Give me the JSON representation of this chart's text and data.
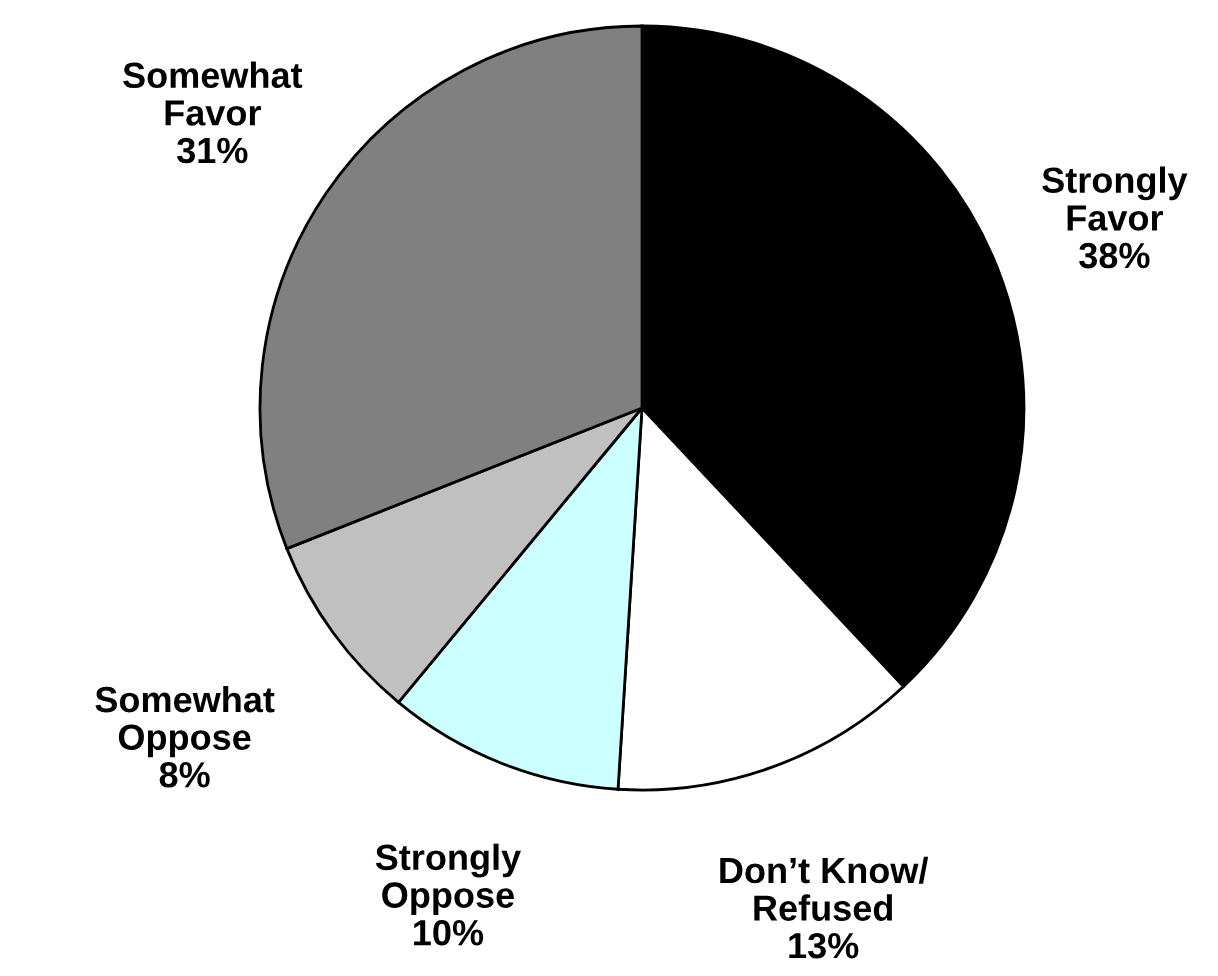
{
  "chart_data": {
    "type": "pie",
    "categories": [
      "Strongly\nFavor",
      "Don’t Know/\nRefused",
      "Strongly\nOppose",
      "Somewhat\nOppose",
      "Somewhat\nFavor"
    ],
    "values": [
      38,
      13,
      10,
      8,
      31
    ],
    "value_labels": [
      "38%",
      "13%",
      "10%",
      "8%",
      "31%"
    ],
    "colors": [
      "#000000",
      "#ffffff",
      "#ccffff",
      "#c0c0c0",
      "#808080"
    ]
  }
}
